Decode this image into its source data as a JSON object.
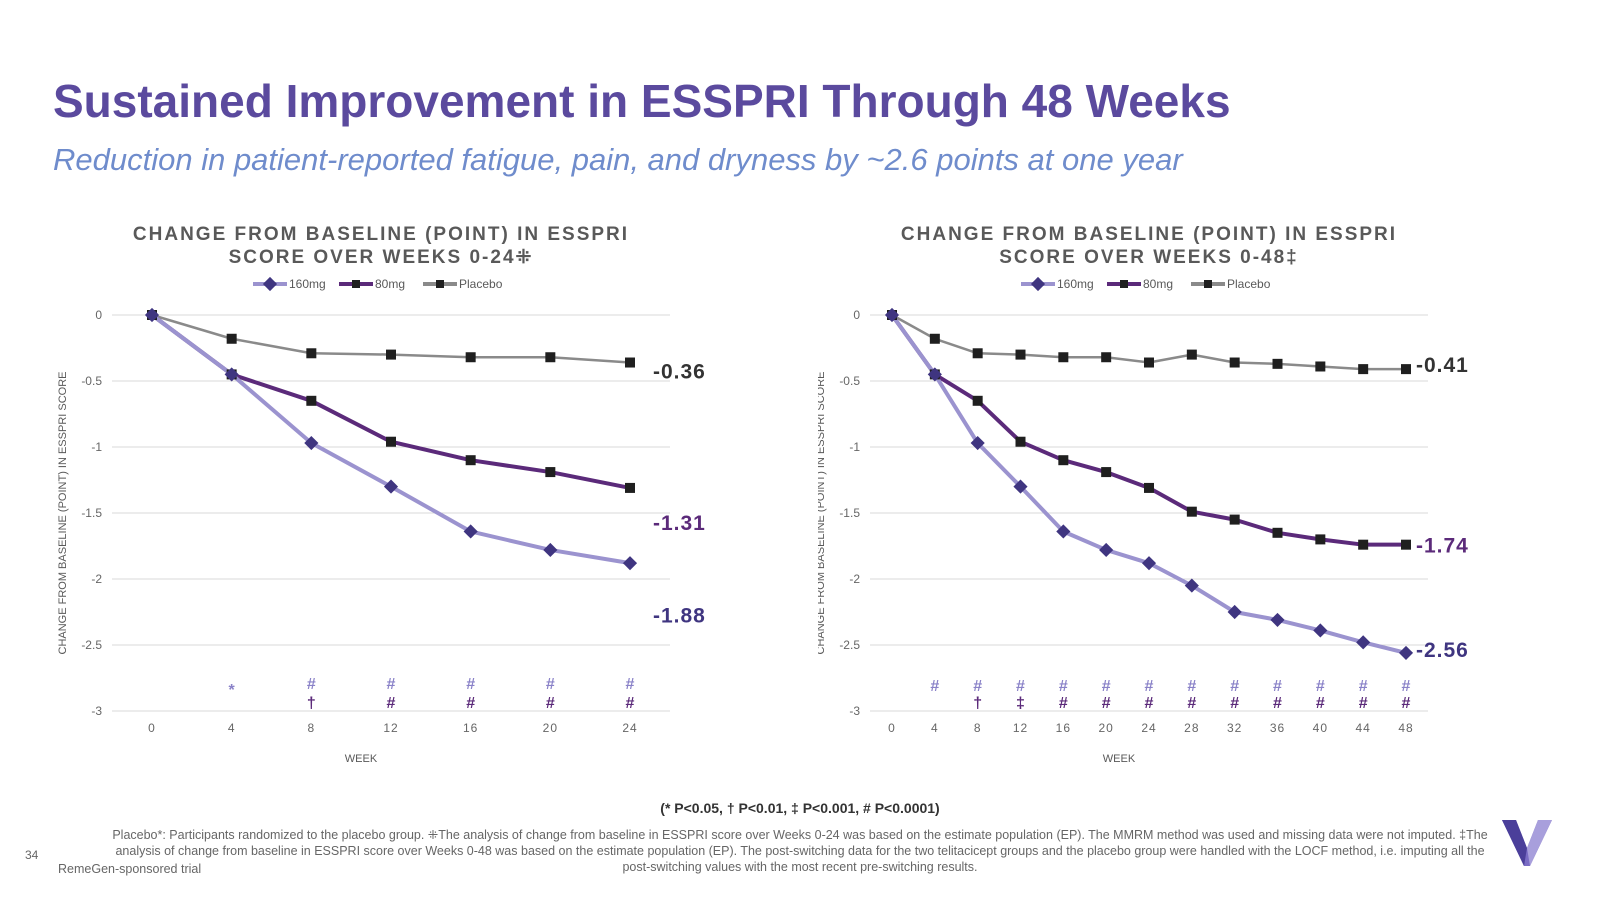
{
  "page": {
    "title": "Sustained Improvement in ESSPRI Through 48 Weeks",
    "subtitle": "Reduction in patient-reported fatigue, pain, and dryness by ~2.6 points at one year",
    "pvalue_key": "(* P<0.05,  † P<0.01,  ‡ P<0.001, # P<0.0001)",
    "footnote": "Placebo*: Participants randomized to the placebo group. ⁜The analysis of change from baseline in ESSPRI score over Weeks 0-24 was based on the estimate population (EP). The MMRM method was used and missing data were not imputed. ‡The analysis of change from baseline in ESSPRI score over Weeks 0-48 was based on the estimate population (EP). The post-switching data for the two telitacicept groups and the placebo group were handled with the LOCF method, i.e. imputing all the post-switching values with the most recent pre-switching results.",
    "page_number": "34",
    "sponsor": "RemeGen-sponsored trial"
  },
  "colors": {
    "title": "#5b4a9e",
    "subtitle": "#6f8ccc",
    "s160": "#9b93cf",
    "s160_marker": "#3f3580",
    "s80": "#5b2a7a",
    "placebo": "#8a8a8a",
    "marker_dark": "#1f1f1f",
    "sig_light": "#8a82c8",
    "sig_dark": "#5b2a7a"
  },
  "chart_data": [
    {
      "type": "line",
      "title": [
        "CHANGE FROM BASELINE (POINT) IN ESSPRI",
        "SCORE OVER WEEKS 0-24⁜"
      ],
      "xlabel": "WEEK",
      "ylabel": "CHANGE FROM BASELINE (POINT) IN ESSPRI SCORE",
      "x": [
        0,
        4,
        8,
        12,
        16,
        20,
        24
      ],
      "xlim": [
        0,
        24
      ],
      "ylim": [
        -3,
        0
      ],
      "yticks": [
        0,
        -0.5,
        -1,
        -1.5,
        -2,
        -2.5,
        -3
      ],
      "ytick_labels": [
        "0",
        "-0.5",
        "-1",
        "-1.5",
        "-2",
        "-2.5",
        "-3"
      ],
      "grid": true,
      "legend_position": "top",
      "series": [
        {
          "name": "160mg",
          "values": [
            0,
            -0.45,
            -0.97,
            -1.3,
            -1.64,
            -1.78,
            -1.88
          ],
          "color": "#9b93cf",
          "marker": "diamond",
          "end_label": "-1.88",
          "end_label_value": -2.27
        },
        {
          "name": "80mg",
          "values": [
            0,
            -0.45,
            -0.65,
            -0.96,
            -1.1,
            -1.19,
            -1.31
          ],
          "color": "#5b2a7a",
          "marker": "square",
          "end_label": "-1.31",
          "end_label_value": -1.57
        },
        {
          "name": "Placebo",
          "values": [
            0,
            -0.18,
            -0.29,
            -0.3,
            -0.32,
            -0.32,
            -0.36
          ],
          "color": "#8a8a8a",
          "marker": "square",
          "end_label": "-0.36",
          "end_label_value": -0.42
        }
      ],
      "significance": {
        "160mg": [
          "",
          "*",
          "#",
          "#",
          "#",
          "#",
          "#"
        ],
        "80mg": [
          "",
          "",
          "†",
          "#",
          "#",
          "#",
          "#"
        ]
      }
    },
    {
      "type": "line",
      "title": [
        "CHANGE FROM BASELINE (POINT) IN ESSPRI",
        "SCORE OVER WEEKS 0-48‡"
      ],
      "xlabel": "WEEK",
      "ylabel": "CHANGE FROM BASELINE (POINT) IN ESSPRI SCORE",
      "x": [
        0,
        4,
        8,
        12,
        16,
        20,
        24,
        28,
        32,
        36,
        40,
        44,
        48
      ],
      "xlim": [
        0,
        48
      ],
      "ylim": [
        -3,
        0
      ],
      "yticks": [
        0,
        -0.5,
        -1,
        -1.5,
        -2,
        -2.5,
        -3
      ],
      "ytick_labels": [
        "0",
        "-0.5",
        "-1",
        "-1.5",
        "-2",
        "-2.5",
        "-3"
      ],
      "grid": true,
      "legend_position": "top",
      "series": [
        {
          "name": "160mg",
          "values": [
            0,
            -0.45,
            -0.97,
            -1.3,
            -1.64,
            -1.78,
            -1.88,
            -2.05,
            -2.25,
            -2.31,
            -2.39,
            -2.48,
            -2.56
          ],
          "color": "#9b93cf",
          "marker": "diamond",
          "end_label": "-2.56",
          "end_label_value": -2.53
        },
        {
          "name": "80mg",
          "values": [
            0,
            -0.45,
            -0.65,
            -0.96,
            -1.1,
            -1.19,
            -1.31,
            -1.49,
            -1.55,
            -1.65,
            -1.7,
            -1.74,
            -1.74
          ],
          "color": "#5b2a7a",
          "marker": "square",
          "end_label": "-1.74",
          "end_label_value": -1.74
        },
        {
          "name": "Placebo",
          "values": [
            0,
            -0.18,
            -0.29,
            -0.3,
            -0.32,
            -0.32,
            -0.36,
            -0.3,
            -0.36,
            -0.37,
            -0.39,
            -0.41,
            -0.41
          ],
          "color": "#8a8a8a",
          "marker": "square",
          "end_label": "-0.41",
          "end_label_value": -0.37
        }
      ],
      "significance": {
        "160mg": [
          "",
          "#",
          "#",
          "#",
          "#",
          "#",
          "#",
          "#",
          "#",
          "#",
          "#",
          "#",
          "#"
        ],
        "80mg": [
          "",
          "",
          "†",
          "‡",
          "#",
          "#",
          "#",
          "#",
          "#",
          "#",
          "#",
          "#",
          "#"
        ]
      }
    }
  ]
}
